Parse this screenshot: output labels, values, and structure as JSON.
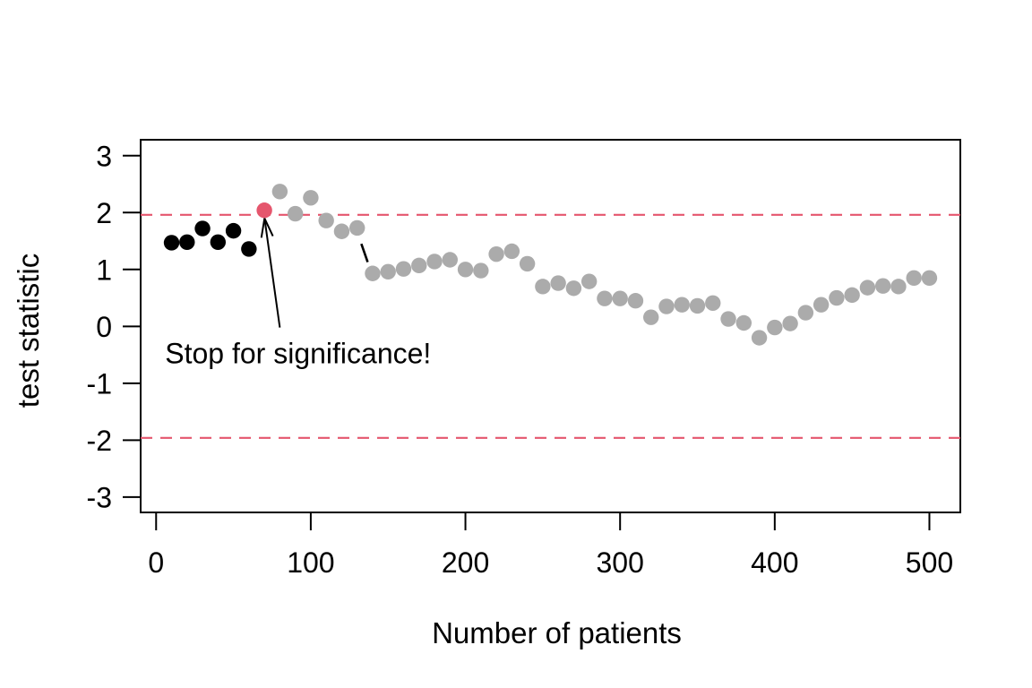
{
  "chart_data": {
    "type": "scatter",
    "title": "",
    "xlabel": "Number of patients",
    "ylabel": "test statistic",
    "xlim": [
      -10,
      520
    ],
    "ylim": [
      -3.27,
      3.28
    ],
    "x_ticks": [
      0,
      100,
      200,
      300,
      400,
      500
    ],
    "x_tick_labels": [
      "0",
      "100",
      "200",
      "300",
      "400",
      "500"
    ],
    "y_ticks": [
      3,
      2,
      1,
      0,
      -1,
      -2,
      -3
    ],
    "y_tick_labels": [
      "3",
      "2",
      "1",
      "0",
      "-1",
      "-2",
      "-3"
    ],
    "grid": false,
    "legend": null,
    "threshold_lines": {
      "upper": 1.96,
      "lower": -1.96,
      "style": "dashed",
      "color": "#E5566D"
    },
    "colors": {
      "point_before_stop": "#000000",
      "point_stop": "#E5566D",
      "point_after_stop": "#ABABAB",
      "threshold": "#E5566D",
      "axis": "#000000"
    },
    "points": [
      {
        "x": 10,
        "y": 1.47,
        "group": "before-stop"
      },
      {
        "x": 20,
        "y": 1.48,
        "group": "before-stop"
      },
      {
        "x": 30,
        "y": 1.72,
        "group": "before-stop"
      },
      {
        "x": 40,
        "y": 1.48,
        "group": "before-stop"
      },
      {
        "x": 50,
        "y": 1.68,
        "group": "before-stop"
      },
      {
        "x": 60,
        "y": 1.36,
        "group": "before-stop"
      },
      {
        "x": 70,
        "y": 2.04,
        "group": "stop"
      },
      {
        "x": 80,
        "y": 2.37,
        "group": "after-stop"
      },
      {
        "x": 90,
        "y": 1.98,
        "group": "after-stop"
      },
      {
        "x": 100,
        "y": 2.26,
        "group": "after-stop"
      },
      {
        "x": 110,
        "y": 1.86,
        "group": "after-stop"
      },
      {
        "x": 120,
        "y": 1.67,
        "group": "after-stop"
      },
      {
        "x": 130,
        "y": 1.73,
        "group": "after-stop"
      },
      {
        "x": 140,
        "y": 0.93,
        "group": "after-stop"
      },
      {
        "x": 150,
        "y": 0.96,
        "group": "after-stop"
      },
      {
        "x": 160,
        "y": 1.01,
        "group": "after-stop"
      },
      {
        "x": 170,
        "y": 1.07,
        "group": "after-stop"
      },
      {
        "x": 180,
        "y": 1.14,
        "group": "after-stop"
      },
      {
        "x": 190,
        "y": 1.17,
        "group": "after-stop"
      },
      {
        "x": 200,
        "y": 1.0,
        "group": "after-stop"
      },
      {
        "x": 210,
        "y": 0.98,
        "group": "after-stop"
      },
      {
        "x": 220,
        "y": 1.27,
        "group": "after-stop"
      },
      {
        "x": 230,
        "y": 1.32,
        "group": "after-stop"
      },
      {
        "x": 240,
        "y": 1.1,
        "group": "after-stop"
      },
      {
        "x": 250,
        "y": 0.7,
        "group": "after-stop"
      },
      {
        "x": 260,
        "y": 0.76,
        "group": "after-stop"
      },
      {
        "x": 270,
        "y": 0.67,
        "group": "after-stop"
      },
      {
        "x": 280,
        "y": 0.79,
        "group": "after-stop"
      },
      {
        "x": 290,
        "y": 0.49,
        "group": "after-stop"
      },
      {
        "x": 300,
        "y": 0.49,
        "group": "after-stop"
      },
      {
        "x": 310,
        "y": 0.45,
        "group": "after-stop"
      },
      {
        "x": 320,
        "y": 0.16,
        "group": "after-stop"
      },
      {
        "x": 330,
        "y": 0.35,
        "group": "after-stop"
      },
      {
        "x": 340,
        "y": 0.38,
        "group": "after-stop"
      },
      {
        "x": 350,
        "y": 0.36,
        "group": "after-stop"
      },
      {
        "x": 360,
        "y": 0.41,
        "group": "after-stop"
      },
      {
        "x": 370,
        "y": 0.13,
        "group": "after-stop"
      },
      {
        "x": 380,
        "y": 0.06,
        "group": "after-stop"
      },
      {
        "x": 390,
        "y": -0.2,
        "group": "after-stop"
      },
      {
        "x": 400,
        "y": -0.02,
        "group": "after-stop"
      },
      {
        "x": 410,
        "y": 0.05,
        "group": "after-stop"
      },
      {
        "x": 420,
        "y": 0.24,
        "group": "after-stop"
      },
      {
        "x": 430,
        "y": 0.38,
        "group": "after-stop"
      },
      {
        "x": 440,
        "y": 0.5,
        "group": "after-stop"
      },
      {
        "x": 450,
        "y": 0.55,
        "group": "after-stop"
      },
      {
        "x": 460,
        "y": 0.68,
        "group": "after-stop"
      },
      {
        "x": 470,
        "y": 0.71,
        "group": "after-stop"
      },
      {
        "x": 480,
        "y": 0.7,
        "group": "after-stop"
      },
      {
        "x": 490,
        "y": 0.85,
        "group": "after-stop"
      },
      {
        "x": 500,
        "y": 0.85,
        "group": "after-stop"
      }
    ],
    "annotation": {
      "text": "Stop for significance!",
      "text_anchor": {
        "x": 5.8,
        "y": -0.65
      },
      "arrow": {
        "from": {
          "x": 80.0,
          "y": -0.02
        },
        "to": {
          "x": 70.1,
          "y": 1.9
        }
      },
      "drop_segment": {
        "from": {
          "x": 132.7,
          "y": 1.45
        },
        "to": {
          "x": 136.8,
          "y": 1.13
        }
      }
    }
  }
}
